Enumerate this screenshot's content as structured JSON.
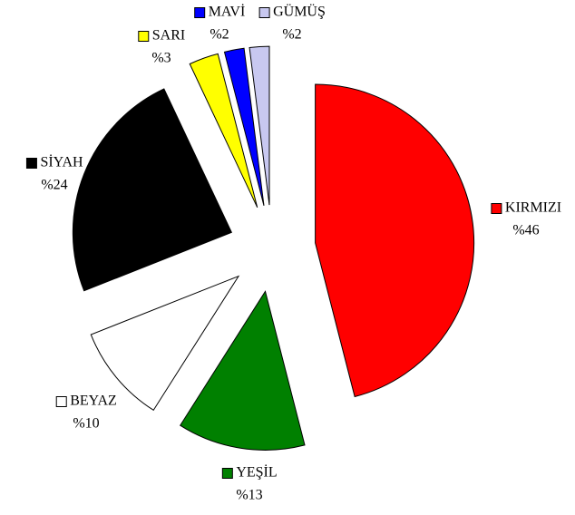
{
  "chart_data": {
    "type": "pie",
    "categories": [
      "KIRMIZI",
      "YEŞİL",
      "BEYAZ",
      "SİYAH",
      "SARI",
      "MAVİ",
      "GÜMÜŞ"
    ],
    "values": [
      46,
      13,
      10,
      24,
      3,
      2,
      2
    ],
    "value_labels": [
      "%46",
      "%13",
      "%10",
      "%24",
      "%3",
      "%2",
      "%2"
    ],
    "colors": [
      "#ff0000",
      "#008000",
      "#ffffff",
      "#000000",
      "#ffff00",
      "#0000ff",
      "#c8c8f0"
    ]
  }
}
